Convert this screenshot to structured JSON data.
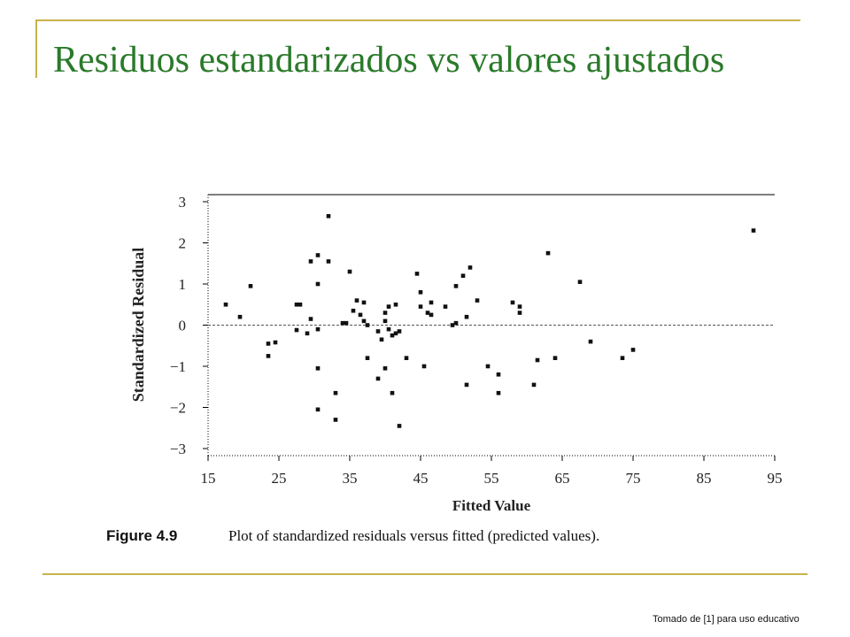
{
  "slide": {
    "title": "Residuos estandarizados vs valores ajustados",
    "credit": "Tomado de [1] para uso educativo"
  },
  "chart_data": {
    "type": "scatter",
    "xlabel": "Fitted Value",
    "ylabel": "Standardized Residual",
    "xlim": [
      15,
      95
    ],
    "ylim": [
      -3,
      3
    ],
    "xticks": [
      15,
      25,
      35,
      45,
      55,
      65,
      75,
      85,
      95
    ],
    "yticks": [
      3,
      2,
      1,
      0,
      -1,
      -2,
      -3
    ],
    "ytick_labels": [
      "3",
      "2",
      "1",
      "0",
      "−1",
      "−2",
      "−3"
    ],
    "reference_line_y": 0,
    "grid": false,
    "caption_label": "Figure 4.9",
    "caption_text": "Plot of standardized residuals versus fitted (predicted values).",
    "points": [
      [
        17.5,
        0.5
      ],
      [
        19.5,
        0.2
      ],
      [
        21,
        0.95
      ],
      [
        23.5,
        -0.45
      ],
      [
        23.5,
        -0.75
      ],
      [
        24.5,
        -0.42
      ],
      [
        27.5,
        -0.12
      ],
      [
        27.5,
        0.5
      ],
      [
        28,
        0.5
      ],
      [
        29,
        -0.2
      ],
      [
        29.5,
        0.15
      ],
      [
        29.5,
        1.55
      ],
      [
        30.5,
        1.7
      ],
      [
        30.5,
        1.0
      ],
      [
        30.5,
        -0.1
      ],
      [
        30.5,
        -1.05
      ],
      [
        30.5,
        -2.05
      ],
      [
        32,
        1.55
      ],
      [
        32,
        2.65
      ],
      [
        33,
        -1.65
      ],
      [
        33,
        -2.3
      ],
      [
        34,
        0.05
      ],
      [
        34.5,
        0.05
      ],
      [
        35,
        1.3
      ],
      [
        35.5,
        0.35
      ],
      [
        36,
        0.6
      ],
      [
        36.5,
        0.25
      ],
      [
        37,
        0.55
      ],
      [
        37,
        0.1
      ],
      [
        37.5,
        0.0
      ],
      [
        37.5,
        -0.8
      ],
      [
        39,
        -0.15
      ],
      [
        39,
        -1.3
      ],
      [
        39.5,
        -0.35
      ],
      [
        40,
        0.1
      ],
      [
        40,
        0.3
      ],
      [
        40,
        -1.05
      ],
      [
        40.5,
        0.45
      ],
      [
        40.5,
        -0.1
      ],
      [
        41,
        -0.25
      ],
      [
        41,
        -1.65
      ],
      [
        41.5,
        0.5
      ],
      [
        41.5,
        -0.2
      ],
      [
        42,
        -0.15
      ],
      [
        42,
        -2.45
      ],
      [
        43,
        -0.8
      ],
      [
        44.5,
        1.25
      ],
      [
        45,
        0.8
      ],
      [
        45,
        0.45
      ],
      [
        45.5,
        -1.0
      ],
      [
        46,
        0.3
      ],
      [
        46.5,
        0.55
      ],
      [
        46.5,
        0.25
      ],
      [
        48.5,
        0.45
      ],
      [
        49.5,
        0.0
      ],
      [
        50,
        0.05
      ],
      [
        50,
        0.95
      ],
      [
        51,
        1.2
      ],
      [
        51.5,
        0.2
      ],
      [
        51.5,
        -1.45
      ],
      [
        52,
        1.4
      ],
      [
        53,
        0.6
      ],
      [
        54.5,
        -1.0
      ],
      [
        56,
        -1.2
      ],
      [
        56,
        -1.65
      ],
      [
        58,
        0.55
      ],
      [
        59,
        0.45
      ],
      [
        59,
        0.3
      ],
      [
        61,
        -1.45
      ],
      [
        61.5,
        -0.85
      ],
      [
        63,
        1.75
      ],
      [
        64,
        -0.8
      ],
      [
        67.5,
        1.05
      ],
      [
        69,
        -0.4
      ],
      [
        73.5,
        -0.8
      ],
      [
        75,
        -0.6
      ],
      [
        92,
        2.3
      ]
    ]
  }
}
